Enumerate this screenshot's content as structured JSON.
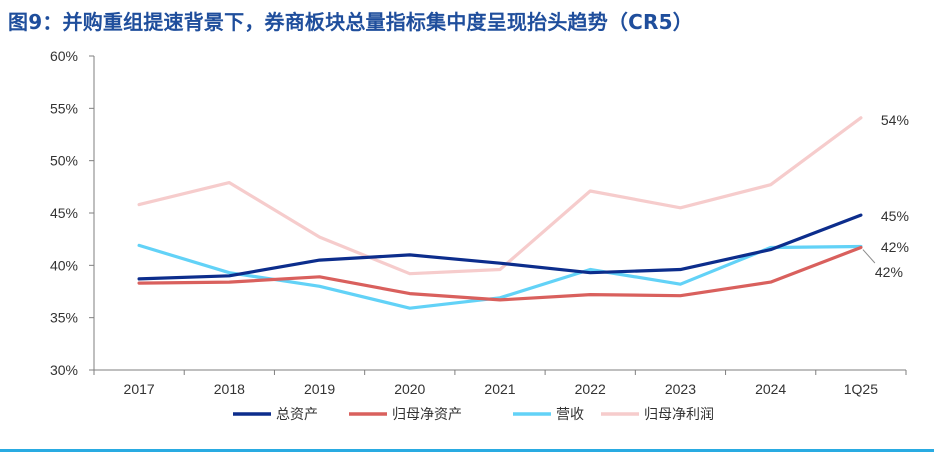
{
  "title": "图9：并购重组提速背景下，券商板块总量指标集中度呈现抬头趋势（CR5）",
  "chart_data": {
    "type": "line",
    "categories": [
      "2017",
      "2018",
      "2019",
      "2020",
      "2021",
      "2022",
      "2023",
      "2024",
      "1Q25"
    ],
    "yticks": [
      "30%",
      "35%",
      "40%",
      "45%",
      "50%",
      "55%",
      "60%"
    ],
    "ylim": [
      30,
      60
    ],
    "grid": false,
    "legend_position": "bottom",
    "series": [
      {
        "name": "总资产",
        "color": "#0c2d8c",
        "values": [
          38.7,
          39.0,
          40.5,
          41.0,
          40.2,
          39.3,
          39.6,
          41.5,
          44.8
        ],
        "end_label": "45%"
      },
      {
        "name": "归母净资产",
        "color": "#d9605d",
        "values": [
          38.3,
          38.4,
          38.9,
          37.3,
          36.7,
          37.2,
          37.1,
          38.4,
          41.7
        ],
        "end_label": "42%"
      },
      {
        "name": "营收",
        "color": "#62d2f7",
        "values": [
          41.9,
          39.3,
          38.0,
          35.9,
          36.9,
          39.6,
          38.2,
          41.7,
          41.8
        ],
        "end_label": "42%"
      },
      {
        "name": "归母净利润",
        "color": "#f6cccc",
        "values": [
          45.8,
          47.9,
          42.7,
          39.2,
          39.6,
          47.1,
          45.5,
          47.7,
          54.1
        ],
        "end_label": "54%"
      }
    ]
  }
}
